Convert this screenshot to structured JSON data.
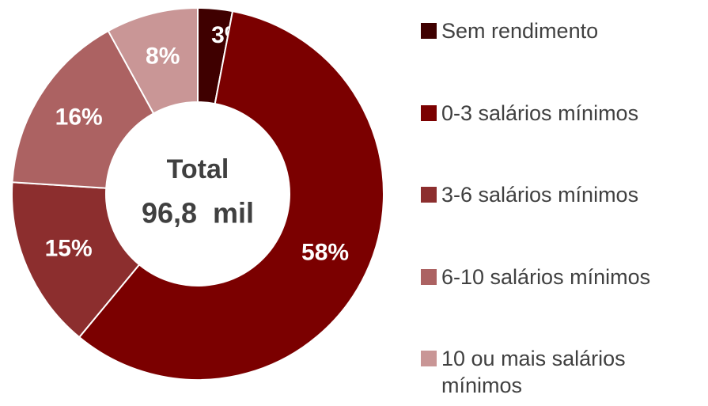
{
  "chart_data": {
    "type": "donut",
    "center_title": "Total",
    "center_value": "96,8  mil",
    "categories": [
      "Sem rendimento",
      "0-3 salários mínimos",
      "3-6 salários mínimos",
      "6-10 salários mínimos",
      "10 ou mais salários mínimos"
    ],
    "values": [
      3,
      58,
      15,
      16,
      8
    ],
    "value_labels": [
      "3%",
      "58%",
      "15%",
      "16%",
      "8%"
    ],
    "colors": [
      "#3f0000",
      "#7b0000",
      "#8c2e2e",
      "#ac6262",
      "#c99696"
    ],
    "legend": "right"
  }
}
